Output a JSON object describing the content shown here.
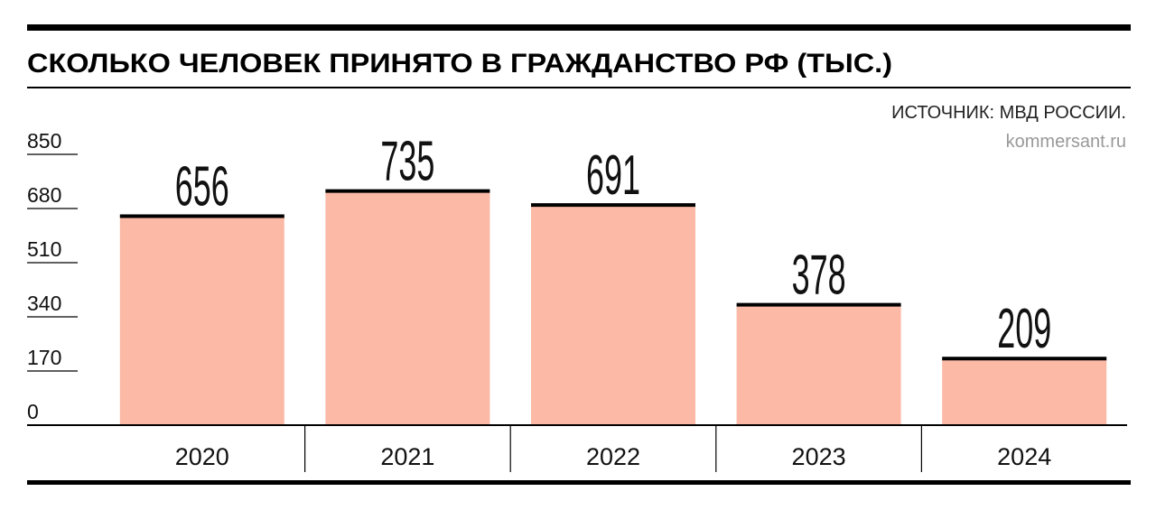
{
  "chart_data": {
    "type": "bar",
    "title": "СКОЛЬКО ЧЕЛОВЕК ПРИНЯТО В ГРАЖДАНСТВО РФ (ТЫС.)",
    "source": "ИСТОЧНИК: МВД РОССИИ.",
    "site": "kommersant.ru",
    "categories": [
      "2020",
      "2021",
      "2022",
      "2023",
      "2024"
    ],
    "values": [
      656,
      735,
      691,
      378,
      209
    ],
    "color": "#fbb9a6",
    "ylim": [
      0,
      850
    ],
    "yticks": [
      0,
      170,
      340,
      510,
      680,
      850
    ],
    "grid": false
  }
}
